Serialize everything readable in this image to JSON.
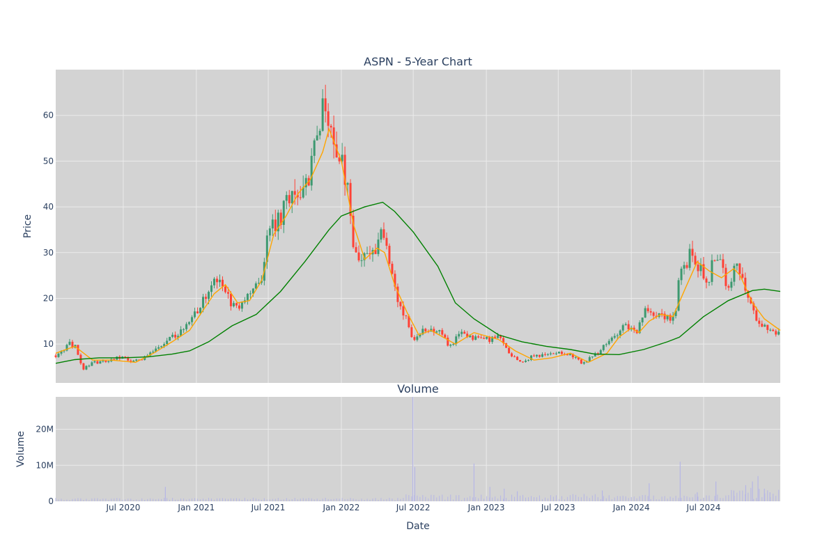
{
  "figure": {
    "title": "ASPN - 5-Year Chart",
    "volume_title": "Volume"
  },
  "colors": {
    "plot_bg": "#d3d3d3",
    "grid": "#ebebeb",
    "up": "#3d9970",
    "down": "#ff4136",
    "ma_short": "#ffa500",
    "ma_long": "#008000",
    "volume_bar": "#b6b6e6",
    "text": "#2a3f5f"
  },
  "chart_data": [
    {
      "type": "candlestick",
      "title": "ASPN - 5-Year Chart",
      "xlabel": "",
      "ylabel": "Price",
      "xlim": [
        "2020-01-13",
        "2025-01-10"
      ],
      "ylim": [
        1.5,
        70
      ],
      "y_ticks": [
        10,
        20,
        30,
        40,
        50,
        60
      ],
      "price_anchors": [
        [
          "2020-01-13",
          7.5
        ],
        [
          "2020-02-15",
          10
        ],
        [
          "2020-03-01",
          9.5
        ],
        [
          "2020-03-23",
          4.5
        ],
        [
          "2020-04-15",
          6
        ],
        [
          "2020-05-15",
          6
        ],
        [
          "2020-06-15",
          7.3
        ],
        [
          "2020-07-15",
          6.5
        ],
        [
          "2020-08-15",
          6.5
        ],
        [
          "2020-09-15",
          8.5
        ],
        [
          "2020-10-15",
          10.5
        ],
        [
          "2020-11-15",
          12
        ],
        [
          "2020-12-15",
          15
        ],
        [
          "2021-01-15",
          19
        ],
        [
          "2021-02-15",
          25.5
        ],
        [
          "2021-03-01",
          23
        ],
        [
          "2021-03-15",
          20.5
        ],
        [
          "2021-04-15",
          18
        ],
        [
          "2021-05-15",
          21
        ],
        [
          "2021-06-15",
          25
        ],
        [
          "2021-07-01",
          35
        ],
        [
          "2021-08-01",
          37
        ],
        [
          "2021-08-15",
          42
        ],
        [
          "2021-09-15",
          44
        ],
        [
          "2021-10-15",
          48
        ],
        [
          "2021-11-01",
          55
        ],
        [
          "2021-11-20",
          65
        ],
        [
          "2021-12-15",
          53
        ],
        [
          "2022-01-01",
          50
        ],
        [
          "2022-01-20",
          42
        ],
        [
          "2022-02-01",
          31
        ],
        [
          "2022-02-20",
          28
        ],
        [
          "2022-03-15",
          30
        ],
        [
          "2022-04-01",
          28
        ],
        [
          "2022-04-10",
          37
        ],
        [
          "2022-04-25",
          31
        ],
        [
          "2022-05-15",
          22
        ],
        [
          "2022-06-01",
          17
        ],
        [
          "2022-06-15",
          15
        ],
        [
          "2022-07-01",
          10
        ],
        [
          "2022-08-01",
          13.5
        ],
        [
          "2022-09-01",
          13
        ],
        [
          "2022-10-01",
          9.5
        ],
        [
          "2022-11-01",
          12.5
        ],
        [
          "2022-12-01",
          11.5
        ],
        [
          "2023-01-01",
          11
        ],
        [
          "2023-02-01",
          11.5
        ],
        [
          "2023-03-01",
          8
        ],
        [
          "2023-04-01",
          6
        ],
        [
          "2023-05-01",
          7.5
        ],
        [
          "2023-06-01",
          7.5
        ],
        [
          "2023-07-01",
          8.5
        ],
        [
          "2023-08-01",
          7.5
        ],
        [
          "2023-09-01",
          5.8
        ],
        [
          "2023-10-01",
          7.5
        ],
        [
          "2023-11-01",
          10
        ],
        [
          "2023-12-15",
          14.5
        ],
        [
          "2024-01-15",
          12
        ],
        [
          "2024-02-01",
          17
        ],
        [
          "2024-03-01",
          17
        ],
        [
          "2024-04-01",
          16
        ],
        [
          "2024-04-20",
          15
        ],
        [
          "2024-05-01",
          25
        ],
        [
          "2024-06-01",
          30
        ],
        [
          "2024-07-01",
          25
        ],
        [
          "2024-07-15",
          24
        ],
        [
          "2024-08-01",
          31
        ],
        [
          "2024-08-20",
          25
        ],
        [
          "2024-09-01",
          23
        ],
        [
          "2024-09-20",
          27
        ],
        [
          "2024-10-15",
          22
        ],
        [
          "2024-11-01",
          17
        ],
        [
          "2024-12-01",
          14
        ],
        [
          "2025-01-10",
          12
        ]
      ],
      "series": [
        {
          "name": "",
          "type": "line",
          "color": "#ffa500",
          "points": [
            [
              "2020-01-13",
              8
            ],
            [
              "2020-03-01",
              9.5
            ],
            [
              "2020-04-15",
              6.5
            ],
            [
              "2020-06-01",
              6.5
            ],
            [
              "2020-08-01",
              6
            ],
            [
              "2020-09-15",
              8
            ],
            [
              "2020-11-01",
              10.5
            ],
            [
              "2020-12-15",
              13
            ],
            [
              "2021-01-15",
              17
            ],
            [
              "2021-02-15",
              21
            ],
            [
              "2021-03-15",
              23
            ],
            [
              "2021-04-15",
              19
            ],
            [
              "2021-05-15",
              19.5
            ],
            [
              "2021-06-15",
              24
            ],
            [
              "2021-07-15",
              34
            ],
            [
              "2021-08-15",
              38
            ],
            [
              "2021-09-15",
              43
            ],
            [
              "2021-10-15",
              46
            ],
            [
              "2021-11-15",
              52
            ],
            [
              "2021-12-01",
              57
            ],
            [
              "2022-01-01",
              50
            ],
            [
              "2022-02-01",
              36
            ],
            [
              "2022-03-01",
              28.5
            ],
            [
              "2022-04-01",
              31
            ],
            [
              "2022-04-20",
              30
            ],
            [
              "2022-05-15",
              23
            ],
            [
              "2022-06-15",
              17
            ],
            [
              "2022-07-15",
              12
            ],
            [
              "2022-08-15",
              13
            ],
            [
              "2022-10-15",
              10
            ],
            [
              "2022-12-01",
              12.5
            ],
            [
              "2023-02-01",
              11
            ],
            [
              "2023-03-15",
              8.5
            ],
            [
              "2023-05-01",
              6.5
            ],
            [
              "2023-06-15",
              7
            ],
            [
              "2023-08-01",
              8
            ],
            [
              "2023-09-15",
              6
            ],
            [
              "2023-11-01",
              8
            ],
            [
              "2023-12-01",
              11.5
            ],
            [
              "2024-01-01",
              13.5
            ],
            [
              "2024-01-20",
              12.5
            ],
            [
              "2024-02-15",
              15
            ],
            [
              "2024-03-15",
              16.5
            ],
            [
              "2024-04-15",
              16
            ],
            [
              "2024-05-15",
              22
            ],
            [
              "2024-06-15",
              28
            ],
            [
              "2024-07-15",
              26
            ],
            [
              "2024-08-15",
              24.5
            ],
            [
              "2024-09-15",
              26.5
            ],
            [
              "2024-10-01",
              25
            ],
            [
              "2024-11-01",
              19
            ],
            [
              "2024-12-01",
              15.5
            ],
            [
              "2025-01-10",
              13
            ]
          ]
        },
        {
          "name": "",
          "type": "line",
          "color": "#008000",
          "points": [
            [
              "2020-01-13",
              5.8
            ],
            [
              "2020-03-01",
              6.6
            ],
            [
              "2020-05-01",
              7
            ],
            [
              "2020-07-01",
              7
            ],
            [
              "2020-09-01",
              7.2
            ],
            [
              "2020-11-01",
              7.8
            ],
            [
              "2020-12-15",
              8.5
            ],
            [
              "2021-02-01",
              10.5
            ],
            [
              "2021-04-01",
              14
            ],
            [
              "2021-06-01",
              16.5
            ],
            [
              "2021-08-01",
              21.5
            ],
            [
              "2021-10-01",
              28
            ],
            [
              "2021-12-01",
              35
            ],
            [
              "2022-01-01",
              38
            ],
            [
              "2022-03-01",
              40
            ],
            [
              "2022-04-15",
              41
            ],
            [
              "2022-05-15",
              39
            ],
            [
              "2022-07-01",
              34.5
            ],
            [
              "2022-09-01",
              27
            ],
            [
              "2022-10-15",
              19
            ],
            [
              "2022-12-01",
              15.5
            ],
            [
              "2023-02-01",
              12
            ],
            [
              "2023-04-01",
              10.5
            ],
            [
              "2023-06-01",
              9.5
            ],
            [
              "2023-08-01",
              8.8
            ],
            [
              "2023-10-01",
              7.8
            ],
            [
              "2023-12-01",
              7.7
            ],
            [
              "2024-02-01",
              8.8
            ],
            [
              "2024-04-01",
              10.5
            ],
            [
              "2024-05-01",
              11.5
            ],
            [
              "2024-07-01",
              16
            ],
            [
              "2024-09-01",
              19.5
            ],
            [
              "2024-11-01",
              21.7
            ],
            [
              "2024-12-01",
              22
            ],
            [
              "2025-01-10",
              21.5
            ]
          ]
        }
      ]
    },
    {
      "type": "bar",
      "title": "Volume",
      "xlabel": "Date",
      "ylabel": "Volume",
      "xlim": [
        "2020-01-13",
        "2025-01-10"
      ],
      "ylim": [
        0,
        29000000
      ],
      "y_ticks": [
        {
          "value": 0,
          "label": "0"
        },
        {
          "value": 10000000,
          "label": "10M"
        },
        {
          "value": 20000000,
          "label": "20M"
        }
      ],
      "x_ticks": [
        {
          "date": "2020-07-01",
          "label": "Jul 2020"
        },
        {
          "date": "2021-01-01",
          "label": "Jan 2021"
        },
        {
          "date": "2021-07-01",
          "label": "Jul 2021"
        },
        {
          "date": "2022-01-01",
          "label": "Jan 2022"
        },
        {
          "date": "2022-07-01",
          "label": "Jul 2022"
        },
        {
          "date": "2023-01-01",
          "label": "Jan 2023"
        },
        {
          "date": "2023-07-01",
          "label": "Jul 2023"
        },
        {
          "date": "2024-01-01",
          "label": "Jan 2024"
        },
        {
          "date": "2024-07-01",
          "label": "Jul 2024"
        }
      ],
      "spikes": [
        [
          "2020-10-15",
          4000000
        ],
        [
          "2022-06-30",
          29000000
        ],
        [
          "2022-07-05",
          9500000
        ],
        [
          "2022-12-01",
          10500000
        ],
        [
          "2023-01-10",
          4000000
        ],
        [
          "2023-02-15",
          3500000
        ],
        [
          "2023-03-20",
          2800000
        ],
        [
          "2023-10-20",
          3000000
        ],
        [
          "2024-02-15",
          5000000
        ],
        [
          "2024-05-03",
          11000000
        ],
        [
          "2024-06-15",
          2500000
        ],
        [
          "2024-08-01",
          5500000
        ],
        [
          "2024-09-15",
          3000000
        ],
        [
          "2024-10-15",
          4500000
        ],
        [
          "2024-11-01",
          5500000
        ],
        [
          "2024-11-15",
          7000000
        ],
        [
          "2024-12-01",
          3500000
        ],
        [
          "2024-12-15",
          2500000
        ]
      ]
    }
  ]
}
